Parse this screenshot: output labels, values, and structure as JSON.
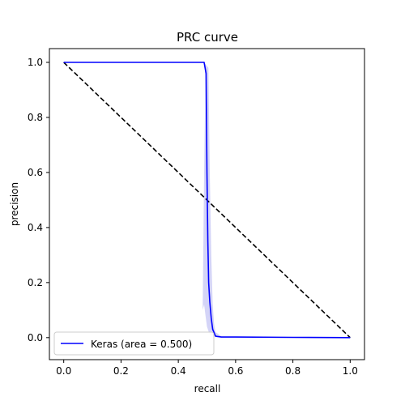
{
  "chart_data": {
    "type": "line",
    "title": "PRC curve",
    "xlabel": "recall",
    "ylabel": "precision",
    "xlim": [
      -0.05,
      1.05
    ],
    "ylim": [
      -0.08,
      1.05
    ],
    "xticks": [
      "0.0",
      "0.2",
      "0.4",
      "0.6",
      "0.8",
      "1.0"
    ],
    "yticks": [
      "0.0",
      "0.2",
      "0.4",
      "0.6",
      "0.8",
      "1.0"
    ],
    "grid": false,
    "legend_position": "lower-left",
    "series": [
      {
        "name": "Keras (area = 0.500)",
        "color": "#0000ff",
        "style": "solid",
        "x": [
          0.0,
          0.49,
          0.497,
          0.5,
          0.503,
          0.506,
          0.51,
          0.515,
          0.52,
          0.53,
          0.55,
          0.6,
          0.8,
          1.0
        ],
        "y": [
          1.0,
          1.0,
          0.96,
          0.6,
          0.35,
          0.2,
          0.13,
          0.07,
          0.03,
          0.005,
          0.002,
          0.002,
          0.001,
          0.0
        ]
      },
      {
        "color": "#000000",
        "style": "dashed",
        "x": [
          0.0,
          1.0
        ],
        "y": [
          1.0,
          0.0
        ]
      }
    ],
    "band": {
      "color": "#b8b8f2",
      "upper": {
        "x": [
          0.49,
          0.505,
          0.51,
          0.515,
          0.52,
          0.525,
          0.53,
          0.55
        ],
        "y": [
          1.0,
          0.98,
          0.6,
          0.3,
          0.12,
          0.05,
          0.02,
          0.005
        ]
      },
      "lower": {
        "x": [
          0.55,
          0.51,
          0.5,
          0.495,
          0.49,
          0.485,
          0.49,
          0.495,
          0.49
        ],
        "y": [
          0.0,
          0.01,
          0.04,
          0.08,
          0.12,
          0.1,
          0.6,
          0.95,
          1.0
        ]
      }
    }
  }
}
